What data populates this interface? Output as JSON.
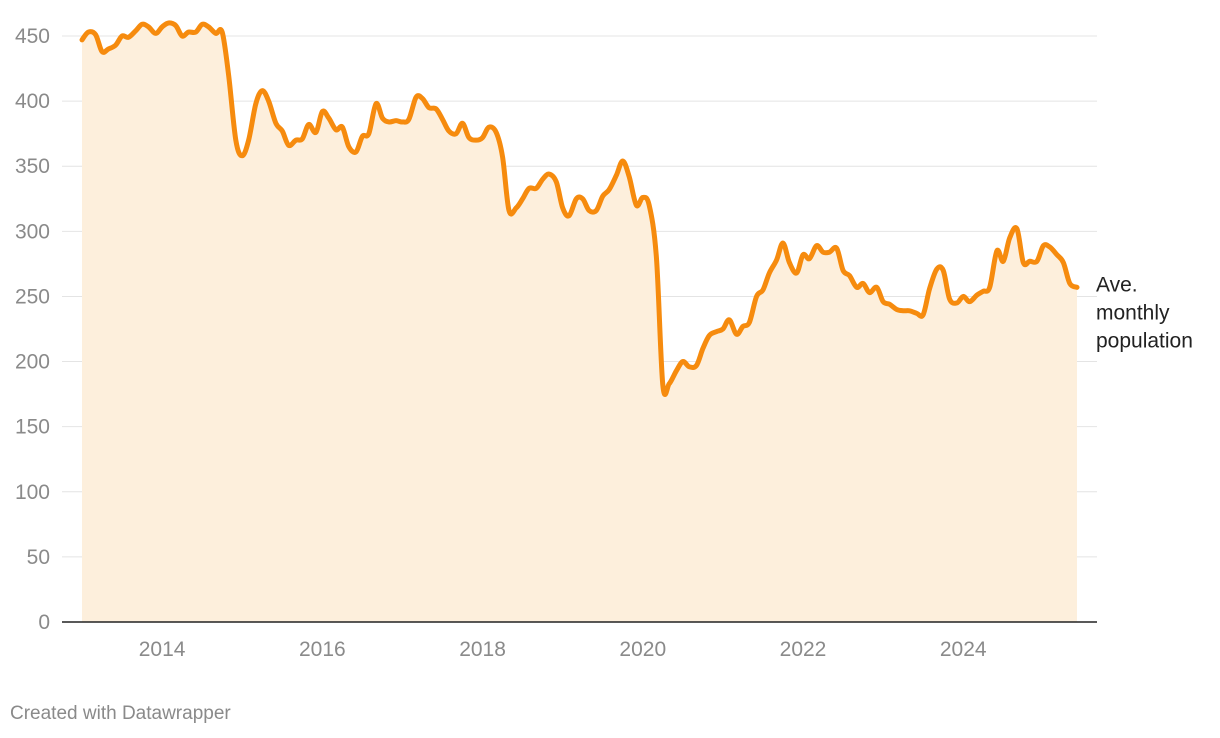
{
  "credit": "Created with Datawrapper",
  "colors": {
    "line": "#f68b0e",
    "area": "#fdefdc",
    "grid": "#e4e4e4",
    "axis": "#222222",
    "tick_text": "#8a8a8a"
  },
  "chart_data": {
    "type": "area",
    "title": "",
    "xlabel": "",
    "ylabel": "",
    "ylim": [
      0,
      450
    ],
    "yticks": [
      0,
      50,
      100,
      150,
      200,
      250,
      300,
      350,
      400,
      450
    ],
    "xticks": [
      2014,
      2016,
      2018,
      2020,
      2022,
      2024
    ],
    "xlim": [
      2012.96,
      2025.74
    ],
    "grid": true,
    "legend": "none",
    "series": [
      {
        "name": "Ave. monthly population",
        "label_lines": [
          "Ave.",
          "monthly",
          "population"
        ],
        "points": [
          [
            2013.0,
            447
          ],
          [
            2013.08,
            453
          ],
          [
            2013.17,
            451
          ],
          [
            2013.25,
            438
          ],
          [
            2013.33,
            440
          ],
          [
            2013.42,
            443
          ],
          [
            2013.5,
            450
          ],
          [
            2013.58,
            449
          ],
          [
            2013.67,
            454
          ],
          [
            2013.75,
            459
          ],
          [
            2013.83,
            457
          ],
          [
            2013.92,
            452
          ],
          [
            2014.0,
            457
          ],
          [
            2014.08,
            460
          ],
          [
            2014.17,
            458
          ],
          [
            2014.25,
            450
          ],
          [
            2014.33,
            453
          ],
          [
            2014.42,
            453
          ],
          [
            2014.5,
            459
          ],
          [
            2014.58,
            457
          ],
          [
            2014.67,
            452
          ],
          [
            2014.75,
            453
          ],
          [
            2014.83,
            420
          ],
          [
            2014.92,
            370
          ],
          [
            2015.0,
            358
          ],
          [
            2015.08,
            370
          ],
          [
            2015.17,
            398
          ],
          [
            2015.25,
            408
          ],
          [
            2015.33,
            400
          ],
          [
            2015.42,
            383
          ],
          [
            2015.5,
            377
          ],
          [
            2015.58,
            366
          ],
          [
            2015.67,
            370
          ],
          [
            2015.75,
            371
          ],
          [
            2015.83,
            382
          ],
          [
            2015.92,
            376
          ],
          [
            2016.0,
            392
          ],
          [
            2016.08,
            387
          ],
          [
            2016.17,
            378
          ],
          [
            2016.25,
            380
          ],
          [
            2016.33,
            365
          ],
          [
            2016.42,
            361
          ],
          [
            2016.5,
            373
          ],
          [
            2016.58,
            375
          ],
          [
            2016.67,
            398
          ],
          [
            2016.75,
            387
          ],
          [
            2016.83,
            384
          ],
          [
            2016.92,
            385
          ],
          [
            2017.0,
            384
          ],
          [
            2017.08,
            386
          ],
          [
            2017.17,
            403
          ],
          [
            2017.25,
            402
          ],
          [
            2017.33,
            395
          ],
          [
            2017.42,
            394
          ],
          [
            2017.5,
            386
          ],
          [
            2017.58,
            377
          ],
          [
            2017.67,
            375
          ],
          [
            2017.75,
            383
          ],
          [
            2017.83,
            372
          ],
          [
            2017.92,
            370
          ],
          [
            2018.0,
            372
          ],
          [
            2018.08,
            380
          ],
          [
            2018.17,
            376
          ],
          [
            2018.25,
            357
          ],
          [
            2018.33,
            316
          ],
          [
            2018.42,
            318
          ],
          [
            2018.5,
            325
          ],
          [
            2018.58,
            333
          ],
          [
            2018.67,
            333
          ],
          [
            2018.75,
            340
          ],
          [
            2018.83,
            344
          ],
          [
            2018.92,
            338
          ],
          [
            2019.0,
            318
          ],
          [
            2019.08,
            312
          ],
          [
            2019.17,
            325
          ],
          [
            2019.25,
            325
          ],
          [
            2019.33,
            316
          ],
          [
            2019.42,
            316
          ],
          [
            2019.5,
            327
          ],
          [
            2019.58,
            332
          ],
          [
            2019.67,
            343
          ],
          [
            2019.75,
            354
          ],
          [
            2019.83,
            342
          ],
          [
            2019.92,
            320
          ],
          [
            2020.0,
            326
          ],
          [
            2020.08,
            320
          ],
          [
            2020.17,
            280
          ],
          [
            2020.25,
            182
          ],
          [
            2020.33,
            183
          ],
          [
            2020.42,
            193
          ],
          [
            2020.5,
            200
          ],
          [
            2020.58,
            196
          ],
          [
            2020.67,
            197
          ],
          [
            2020.75,
            210
          ],
          [
            2020.83,
            220
          ],
          [
            2020.92,
            223
          ],
          [
            2021.0,
            225
          ],
          [
            2021.08,
            232
          ],
          [
            2021.17,
            221
          ],
          [
            2021.25,
            227
          ],
          [
            2021.33,
            230
          ],
          [
            2021.42,
            250
          ],
          [
            2021.5,
            255
          ],
          [
            2021.58,
            268
          ],
          [
            2021.67,
            278
          ],
          [
            2021.75,
            291
          ],
          [
            2021.83,
            276
          ],
          [
            2021.92,
            268
          ],
          [
            2022.0,
            282
          ],
          [
            2022.08,
            279
          ],
          [
            2022.17,
            289
          ],
          [
            2022.25,
            284
          ],
          [
            2022.33,
            284
          ],
          [
            2022.42,
            287
          ],
          [
            2022.5,
            270
          ],
          [
            2022.58,
            266
          ],
          [
            2022.67,
            257
          ],
          [
            2022.75,
            260
          ],
          [
            2022.83,
            253
          ],
          [
            2022.92,
            257
          ],
          [
            2023.0,
            246
          ],
          [
            2023.08,
            244
          ],
          [
            2023.17,
            240
          ],
          [
            2023.25,
            239
          ],
          [
            2023.33,
            239
          ],
          [
            2023.42,
            237
          ],
          [
            2023.5,
            236
          ],
          [
            2023.58,
            256
          ],
          [
            2023.67,
            271
          ],
          [
            2023.75,
            270
          ],
          [
            2023.83,
            248
          ],
          [
            2023.92,
            245
          ],
          [
            2024.0,
            250
          ],
          [
            2024.08,
            246
          ],
          [
            2024.17,
            251
          ],
          [
            2024.25,
            254
          ],
          [
            2024.33,
            257
          ],
          [
            2024.42,
            285
          ],
          [
            2024.5,
            277
          ],
          [
            2024.58,
            295
          ],
          [
            2024.67,
            302
          ],
          [
            2024.75,
            276
          ],
          [
            2024.83,
            277
          ],
          [
            2024.92,
            277
          ],
          [
            2025.0,
            289
          ],
          [
            2025.08,
            288
          ],
          [
            2025.17,
            282
          ],
          [
            2025.25,
            276
          ],
          [
            2025.33,
            260
          ],
          [
            2025.42,
            257
          ]
        ]
      }
    ]
  }
}
